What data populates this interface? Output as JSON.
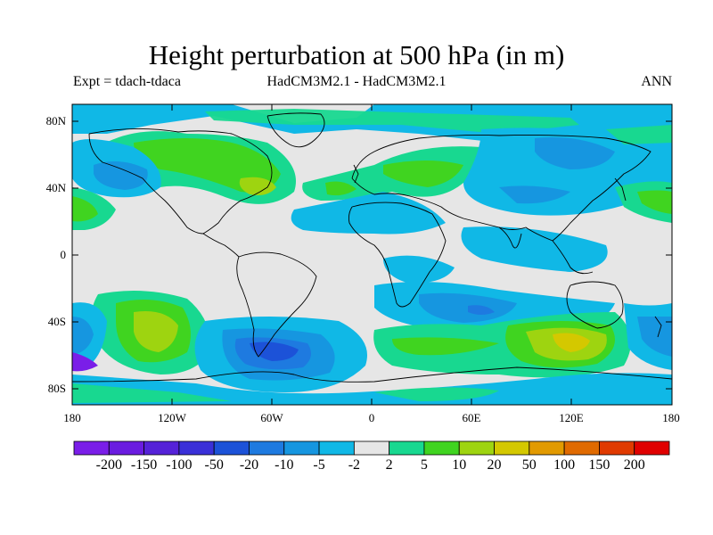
{
  "header": {
    "title": "Height perturbation at 500 hPa (in m)",
    "left": "Expt = tdach-tdaca",
    "center": "HadCM3M2.1 - HadCM3M2.1",
    "right": "ANN"
  },
  "map": {
    "projection": "cylindrical-equidistant",
    "background_color": "#e6e6e6",
    "lat_ticks": [
      "80N",
      "40N",
      "0",
      "40S",
      "80S"
    ],
    "lon_ticks": [
      "180",
      "120W",
      "60W",
      "0",
      "60E",
      "120E",
      "180"
    ]
  },
  "colorbar": {
    "labels": [
      "-200",
      "-150",
      "-100",
      "-50",
      "-20",
      "-10",
      "-5",
      "-2",
      "2",
      "5",
      "10",
      "20",
      "50",
      "100",
      "150",
      "200"
    ],
    "colors": [
      "#7a1ee8",
      "#6a1ce0",
      "#5522d8",
      "#3a30d8",
      "#1c52d8",
      "#1e7ae0",
      "#1696e0",
      "#10b8e6",
      "#e6e6e6",
      "#18d890",
      "#40d420",
      "#9ed410",
      "#d4c800",
      "#e29a00",
      "#e06a00",
      "#e03a00",
      "#e00000"
    ]
  }
}
